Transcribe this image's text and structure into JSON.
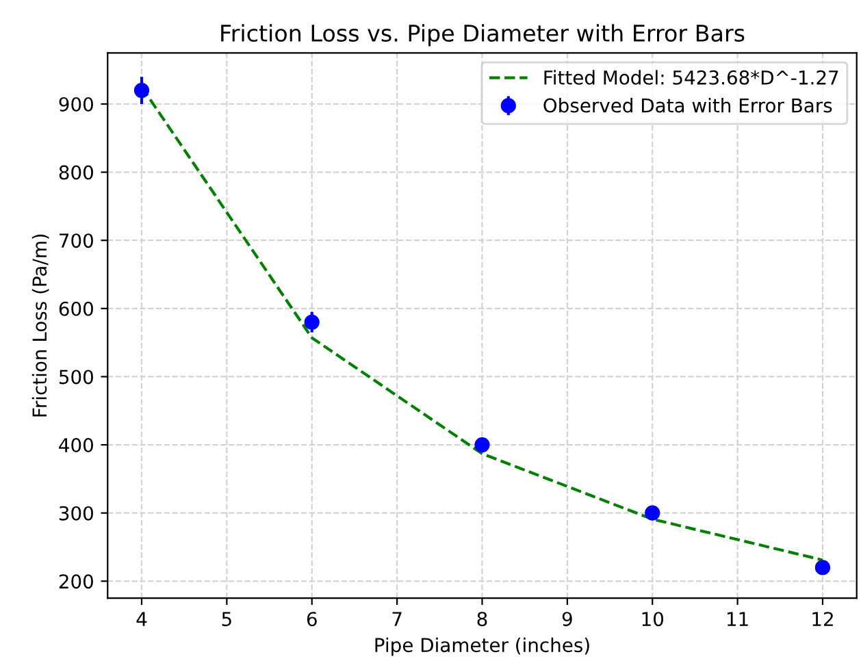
{
  "chart_data": {
    "type": "line",
    "title": "Friction Loss vs. Pipe Diameter with Error Bars",
    "xlabel": "Pipe Diameter (inches)",
    "ylabel": "Friction Loss (Pa/m)",
    "series": [
      {
        "name": "Fitted Model: 5423.68*D^-1.27",
        "color": "#008000",
        "line_style": "dashed",
        "marker": "none",
        "x": [
          4,
          6,
          8,
          10,
          12
        ],
        "values": [
          925,
          557,
          387,
          291,
          231
        ]
      },
      {
        "name": "Observed Data with Error Bars",
        "type": "scatter",
        "color": "#0000ff",
        "marker": "circle",
        "x": [
          4,
          6,
          8,
          10,
          12
        ],
        "values": [
          920,
          580,
          400,
          300,
          220
        ],
        "errors": [
          20,
          15,
          5,
          5,
          5
        ]
      }
    ],
    "xlim": [
      3.6,
      12.4
    ],
    "xticks": [
      4,
      5,
      6,
      7,
      8,
      9,
      10,
      11,
      12
    ],
    "ylim": [
      175,
      975
    ],
    "yticks": [
      200,
      300,
      400,
      500,
      600,
      700,
      800,
      900
    ],
    "grid": true,
    "legend": "top right"
  }
}
